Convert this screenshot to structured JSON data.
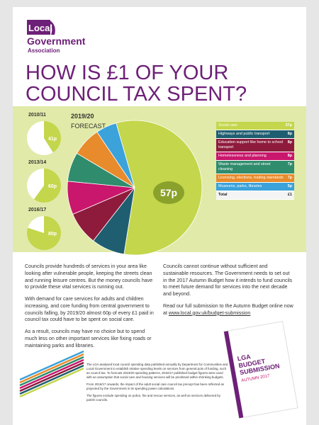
{
  "header": {
    "logo": [
      "Local",
      "Government",
      "Association"
    ],
    "title": [
      "HOW IS £1 OF YOUR",
      "COUNCIL TAX SPENT?"
    ]
  },
  "history": [
    {
      "year": "2010/11",
      "value": 41,
      "label": "41p"
    },
    {
      "year": "2013/14",
      "value": 60,
      "label": "60p"
    },
    {
      "year": "2016/17",
      "value": 80,
      "label": "80p"
    }
  ],
  "forecast": {
    "year": "2019/20",
    "subtitle": "FORECAST",
    "slices": [
      {
        "name": "Social care",
        "value": 57,
        "label": "57p",
        "color": "#c4d64b"
      },
      {
        "name": "Highways and public transport",
        "value": 8,
        "label": "8p",
        "color": "#1f5e70"
      },
      {
        "name": "Education support like home to school transport",
        "value": 8,
        "label": "8p",
        "color": "#8e1b3c"
      },
      {
        "name": "Homelessness and planning",
        "value": 8,
        "label": "8p",
        "color": "#c8176c"
      },
      {
        "name": "Waste management and street cleaning",
        "value": 7,
        "label": "7p",
        "color": "#2f8c6d"
      },
      {
        "name": "Licensing, elections, trading standards",
        "value": 7,
        "label": "7p",
        "color": "#e88b2c"
      },
      {
        "name": "Museums, parks, libraries",
        "value": 5,
        "label": "5p",
        "color": "#3ba2da"
      }
    ],
    "total": {
      "name": "Total",
      "label": "£1"
    }
  },
  "body": {
    "left": [
      "Councils provide hundreds of services in your area like looking after vulnerable people, keeping the streets clean and running leisure centres. But the money councils have to provide these vital services is running out.",
      "With demand for care services for adults and children increasing, and core funding from central government to councils falling, by 2019/20 almost 60p of every £1 paid in council tax could have to be spent on social care.",
      "As a result, councils may have no choice but to spend much less on other important services like fixing roads or maintaining parks and libraries."
    ],
    "right": [
      "Councils cannot continue without sufficient and sustainable resources. The Government needs to set out in the 2017 Autumn Budget how it intends to fund councils to meet future demand for services into the next decade and beyond.",
      "Read our full submission to the Autumn Budget online now at "
    ],
    "link": "www.local.gov.uk/budget-submission"
  },
  "footnotes": [
    "The LGA analysed local council spending data published annually by Department for Communities and Local Government to establish relative spending levels on services from general pots of funding, such as council tax. To forecast 2019/20 spending patterns, 2016/17 published budget figures were used with an assumption that social care and housing services will be prioritised within shrinking budgets.",
    "From 2016/17 onwards, the impact of the adult social care council tax precept has been reflected as projected by the Government in its spending power calculations.",
    "The figures exclude spending on police, fire and rescue services, as well as services delivered by parish councils."
  ],
  "booklet": {
    "title": [
      "LGA",
      "BUDGET",
      "SUBMISSION"
    ],
    "subtitle": "AUTUMN 2017"
  }
}
